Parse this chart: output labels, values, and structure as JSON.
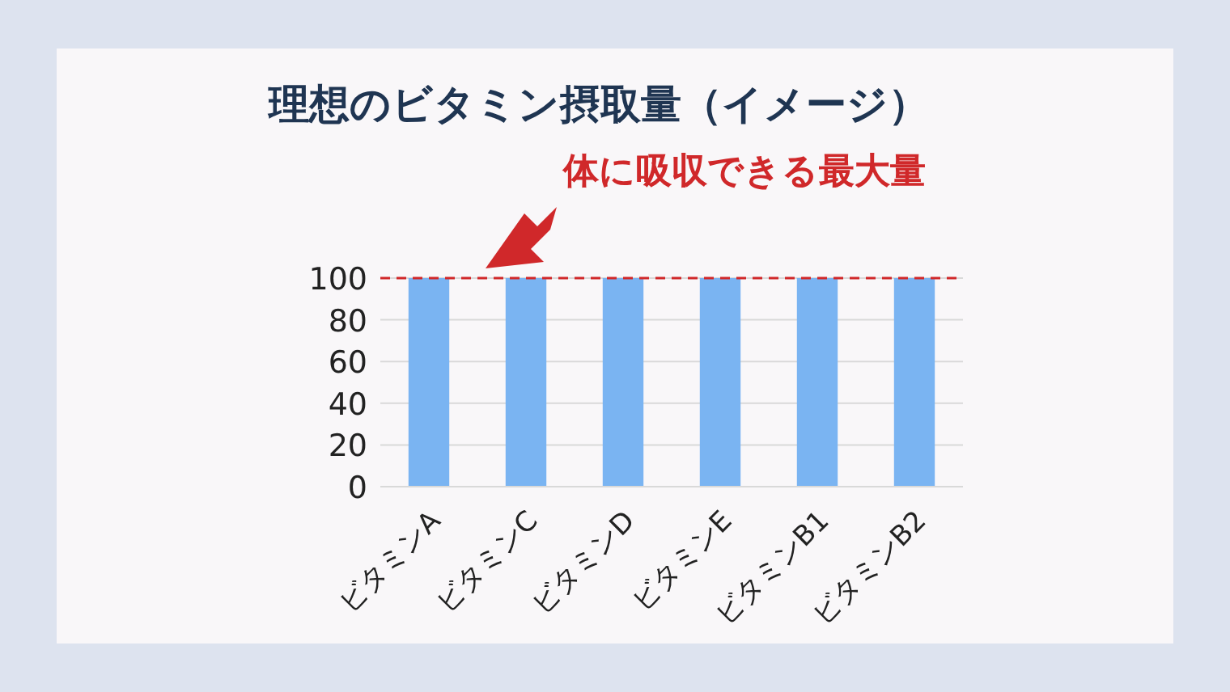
{
  "chart_data": {
    "type": "bar",
    "title": "理想のビタミン摂取量（イメージ）",
    "categories": [
      "ビタミンA",
      "ビタミンC",
      "ビタミンD",
      "ビタミンE",
      "ビタミンB1",
      "ビタミンB2"
    ],
    "values": [
      100,
      100,
      100,
      100,
      100,
      100
    ],
    "color": "#7ab4f2",
    "ylim": [
      0,
      100
    ],
    "yticks": [
      0,
      20,
      40,
      60,
      80,
      100
    ],
    "grid": "y",
    "ref_lines": [
      {
        "axis": "y",
        "value": 100,
        "label": "体に吸収できる最大量",
        "color": "#d0282a",
        "line_style": "dashed"
      }
    ]
  }
}
